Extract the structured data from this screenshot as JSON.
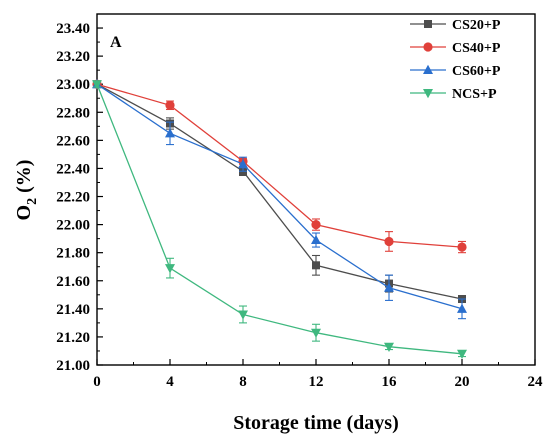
{
  "chart_data": {
    "type": "line",
    "panel_label": "A",
    "xlabel": "Storage time (days)",
    "ylabel": "O",
    "ylabel_sub": "2",
    "ylabel_unit": " (%)",
    "xlim": [
      0,
      24
    ],
    "ylim": [
      21.0,
      23.5
    ],
    "xticks": [
      "0",
      "4",
      "8",
      "12",
      "16",
      "20",
      "24"
    ],
    "xtick_values": [
      0,
      4,
      8,
      12,
      16,
      20,
      24
    ],
    "yticks": [
      "21.00",
      "21.20",
      "21.40",
      "21.60",
      "21.80",
      "22.00",
      "22.20",
      "22.40",
      "22.60",
      "22.80",
      "23.00",
      "23.20",
      "23.40"
    ],
    "ytick_values": [
      21.0,
      21.2,
      21.4,
      21.6,
      21.8,
      22.0,
      22.2,
      22.4,
      22.6,
      22.8,
      23.0,
      23.2,
      23.4
    ],
    "x": [
      0,
      4,
      8,
      12,
      16,
      20
    ],
    "grid": false,
    "legend_position": "top-right",
    "series": [
      {
        "name": "CS20+P",
        "color": "#4d4d4d",
        "marker": "square",
        "values": [
          23.0,
          22.72,
          22.38,
          21.71,
          21.58,
          21.47
        ],
        "errors": [
          0.02,
          0.04,
          0.03,
          0.07,
          0.06,
          0.02
        ]
      },
      {
        "name": "CS40+P",
        "color": "#e0403a",
        "marker": "circle",
        "values": [
          23.0,
          22.85,
          22.45,
          22.0,
          21.88,
          21.84
        ],
        "errors": [
          0.02,
          0.03,
          0.02,
          0.04,
          0.07,
          0.04
        ]
      },
      {
        "name": "CS60+P",
        "color": "#2a6fce",
        "marker": "triangle-up",
        "values": [
          23.0,
          22.65,
          22.43,
          21.89,
          21.55,
          21.4
        ],
        "errors": [
          0.02,
          0.08,
          0.05,
          0.05,
          0.09,
          0.07
        ]
      },
      {
        "name": "NCS+P",
        "color": "#3fb87f",
        "marker": "triangle-down",
        "values": [
          23.0,
          21.69,
          21.36,
          21.23,
          21.13,
          21.08
        ],
        "errors": [
          0.02,
          0.07,
          0.06,
          0.06,
          0.02,
          0.02
        ]
      }
    ]
  }
}
